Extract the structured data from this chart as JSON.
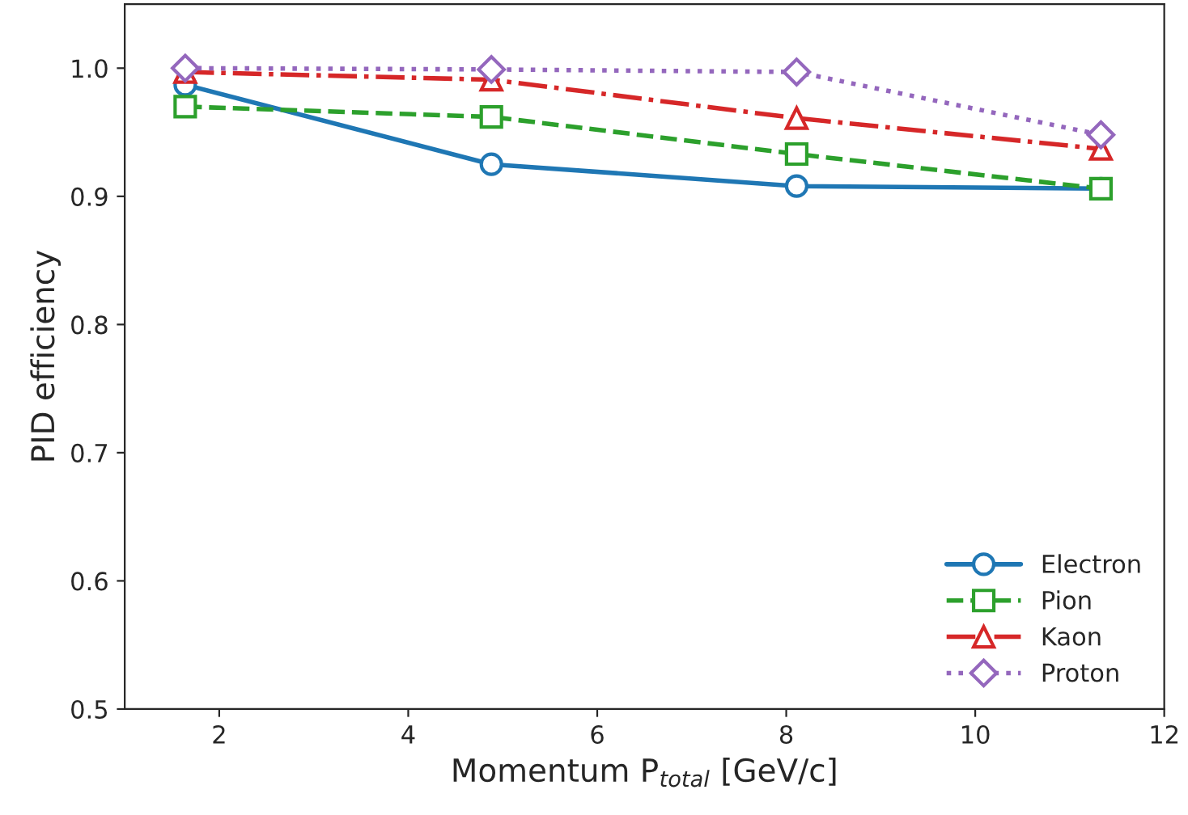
{
  "chart_data": {
    "type": "line",
    "xlabel": "Momentum P$_{total}$ [GeV/c]",
    "ylabel": "PID efficiency",
    "x": [
      1.64,
      4.88,
      8.11,
      11.33
    ],
    "series": [
      {
        "name": "Electron",
        "color": "#1f77b4",
        "marker": "circle",
        "line_style": "solid",
        "values": [
          0.987,
          0.925,
          0.908,
          0.906
        ]
      },
      {
        "name": "Pion",
        "color": "#2ca02c",
        "marker": "square",
        "line_style": "dashed",
        "values": [
          0.97,
          0.962,
          0.933,
          0.906
        ]
      },
      {
        "name": "Kaon",
        "color": "#d62728",
        "marker": "triangle",
        "line_style": "dashdot",
        "values": [
          0.997,
          0.991,
          0.961,
          0.937
        ]
      },
      {
        "name": "Proton",
        "color": "#9467bd",
        "marker": "diamond",
        "line_style": "dotted",
        "values": [
          1.0,
          0.999,
          0.997,
          0.948
        ]
      }
    ],
    "xlim": [
      1,
      12
    ],
    "xticks": [
      2,
      4,
      6,
      8,
      10,
      12
    ],
    "ylim": [
      0.5,
      1.05
    ],
    "yticks": [
      {
        "value": 0.5,
        "label": "0.5"
      },
      {
        "value": 0.6,
        "label": "0.6"
      },
      {
        "value": 0.7,
        "label": "0.7"
      },
      {
        "value": 0.8,
        "label": "0.8"
      },
      {
        "value": 0.9,
        "label": "0.9"
      },
      {
        "value": 1.0,
        "label": "1.0"
      }
    ],
    "legend": "bottom right",
    "grid": false
  }
}
